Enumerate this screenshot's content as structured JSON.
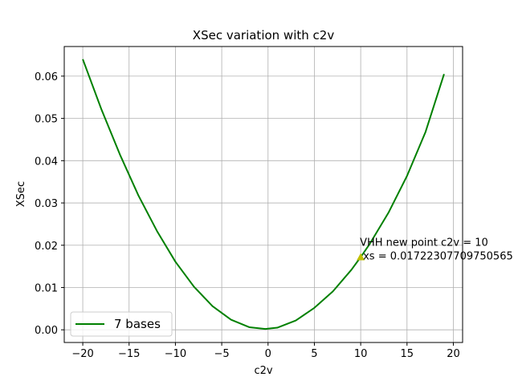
{
  "chart_data": {
    "type": "line",
    "title": "XSec variation with c2v",
    "xlabel": "c2v",
    "ylabel": "XSec",
    "xlim": [
      -22,
      21
    ],
    "ylim": [
      -0.003,
      0.067
    ],
    "xticks": [
      -20,
      -15,
      -10,
      -5,
      0,
      5,
      10,
      15,
      20
    ],
    "yticks": [
      0.0,
      0.01,
      0.02,
      0.03,
      0.04,
      0.05,
      0.06
    ],
    "xtick_labels": [
      "−20",
      "−15",
      "−10",
      "−5",
      "0",
      "5",
      "10",
      "15",
      "20"
    ],
    "ytick_labels": [
      "0.00",
      "0.01",
      "0.02",
      "0.03",
      "0.04",
      "0.05",
      "0.06"
    ],
    "grid": true,
    "legend": {
      "placement": "lower-left"
    },
    "series": [
      {
        "name": "7 bases",
        "color": "#008000",
        "x": [
          -20,
          -18,
          -16,
          -14,
          -12,
          -10,
          -8,
          -6,
          -4,
          -2,
          -0.3,
          1,
          3,
          5,
          7,
          9,
          10,
          11,
          13,
          15,
          17,
          19
        ],
        "y": [
          0.064,
          0.0522,
          0.0415,
          0.0318,
          0.0234,
          0.0161,
          0.0102,
          0.0056,
          0.0024,
          0.0006,
          0.0002,
          0.0005,
          0.0022,
          0.0052,
          0.0091,
          0.0142,
          0.0172,
          0.0204,
          0.0277,
          0.0364,
          0.0468,
          0.0605
        ]
      }
    ],
    "annotations": [
      {
        "marker": "triangle",
        "color": "#bfbf00",
        "x": 10,
        "y": 0.0172,
        "line1": "VHH new point c2v = 10",
        "line2": "xs = 0.01722307709750565"
      }
    ]
  }
}
